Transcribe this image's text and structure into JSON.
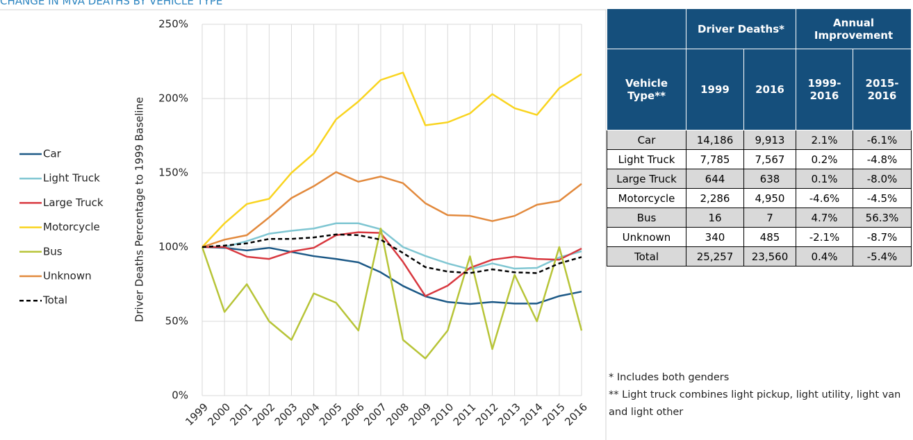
{
  "chart_data": {
    "type": "line",
    "title": "CHANGE IN MVA DEATHS BY VEHICLE TYPE",
    "y_label": "Driver Deaths Percentage to 1999 Baseline",
    "categories": [
      "1999",
      "2000",
      "2001",
      "2002",
      "2003",
      "2004",
      "2005",
      "2006",
      "2007",
      "2008",
      "2009",
      "2010",
      "2011",
      "2012",
      "2013",
      "2014",
      "2015",
      "2016"
    ],
    "ylim": [
      0,
      250
    ],
    "yticks": [
      {
        "value": 0,
        "label": "0%"
      },
      {
        "value": 50,
        "label": "50%"
      },
      {
        "value": 100,
        "label": "100%"
      },
      {
        "value": 150,
        "label": "150%"
      },
      {
        "value": 200,
        "label": "200%"
      },
      {
        "value": 250,
        "label": "250%"
      }
    ],
    "grid": true,
    "legend": "left",
    "series": [
      {
        "name": "Car",
        "color": "#1b5886",
        "values": [
          100,
          99.5,
          97.7,
          99.5,
          96.7,
          93.9,
          92,
          89.7,
          83,
          73.8,
          66.8,
          63,
          61.7,
          63,
          62,
          62,
          67,
          70
        ]
      },
      {
        "name": "Light Truck",
        "color": "#7fc6d2",
        "values": [
          100,
          100,
          104,
          109,
          111,
          112.5,
          116,
          116,
          112,
          100,
          94,
          89,
          85,
          89,
          85.5,
          86,
          93,
          97.2
        ]
      },
      {
        "name": "Large Truck",
        "color": "#d8383f",
        "values": [
          100,
          100,
          93.5,
          92,
          97,
          99.5,
          108,
          110,
          109.5,
          90,
          67,
          74,
          86,
          91.5,
          93.5,
          92,
          91.5,
          99
        ]
      },
      {
        "name": "Motorcycle",
        "color": "#f9d41f",
        "values": [
          100,
          116,
          129,
          132.5,
          150,
          163,
          186,
          198,
          212.5,
          217.5,
          182,
          184,
          190,
          203,
          193.5,
          189,
          207,
          216.5
        ]
      },
      {
        "name": "Bus",
        "color": "#b7c437",
        "values": [
          100,
          56.3,
          75,
          50,
          37.5,
          68.8,
          62.5,
          43.8,
          112.5,
          37.5,
          25,
          43.8,
          93.8,
          31.3,
          81.3,
          50,
          100,
          43.8
        ]
      },
      {
        "name": "Unknown",
        "color": "#e2893c",
        "values": [
          100,
          105,
          108,
          120,
          133,
          141,
          150.5,
          144,
          147.5,
          143,
          129.5,
          121.5,
          121,
          117.5,
          121,
          128.5,
          131,
          142.6
        ]
      },
      {
        "name": "Total",
        "color": "#000000",
        "dashed": true,
        "values": [
          100,
          101,
          102.5,
          105.5,
          105.5,
          106.5,
          108.5,
          108,
          105,
          96,
          86.5,
          83.5,
          82.5,
          85,
          83,
          82.5,
          89,
          93.3
        ]
      }
    ]
  },
  "table": {
    "group_headers": [
      "Driver Deaths*",
      "Annual Improvement"
    ],
    "columns": [
      "Vehicle Type**",
      "1999",
      "2016",
      "1999-2016",
      "2015-2016"
    ],
    "rows": [
      [
        "Car",
        "14,186",
        "9,913",
        "2.1%",
        "-6.1%"
      ],
      [
        "Light Truck",
        "7,785",
        "7,567",
        "0.2%",
        "-4.8%"
      ],
      [
        "Large Truck",
        "644",
        "638",
        "0.1%",
        "-8.0%"
      ],
      [
        "Motorcycle",
        "2,286",
        "4,950",
        "-4.6%",
        "-4.5%"
      ],
      [
        "Bus",
        "16",
        "7",
        "4.7%",
        "56.3%"
      ],
      [
        "Unknown",
        "340",
        "485",
        "-2.1%",
        "-8.7%"
      ],
      [
        "Total",
        "25,257",
        "23,560",
        "0.4%",
        "-5.4%"
      ]
    ]
  },
  "notes": [
    "* Includes both genders",
    "** Light truck combines light pickup, light utility, light van and light other"
  ]
}
